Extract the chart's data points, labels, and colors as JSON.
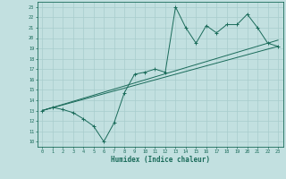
{
  "title": "",
  "xlabel": "Humidex (Indice chaleur)",
  "bg_color": "#c2e0e0",
  "line_color": "#1a6b5a",
  "grid_color": "#a8cccc",
  "xlim": [
    -0.5,
    23.5
  ],
  "ylim": [
    9.5,
    23.5
  ],
  "xtick_vals": [
    0,
    1,
    2,
    3,
    4,
    5,
    6,
    7,
    8,
    9,
    10,
    11,
    12,
    13,
    14,
    15,
    16,
    17,
    18,
    19,
    20,
    21,
    22,
    23
  ],
  "xtick_labels": [
    "0",
    "1",
    "2",
    "3",
    "4",
    "5",
    "6",
    "7",
    "8",
    "9",
    "10",
    "11",
    "12",
    "13",
    "14",
    "15",
    "16",
    "17",
    "18",
    "19",
    "20",
    "21",
    "22",
    "23"
  ],
  "ytick_vals": [
    10,
    11,
    12,
    13,
    14,
    15,
    16,
    17,
    18,
    19,
    20,
    21,
    22,
    23
  ],
  "ytick_labels": [
    "10",
    "11",
    "12",
    "13",
    "14",
    "15",
    "16",
    "17",
    "18",
    "19",
    "20",
    "21",
    "22",
    "23"
  ],
  "line_main_x": [
    0,
    1,
    2,
    3,
    4,
    5,
    6,
    7,
    8,
    9,
    10,
    11,
    12,
    13,
    14,
    15,
    16,
    17,
    18,
    19,
    20,
    21,
    22,
    23
  ],
  "line_main_y": [
    13.0,
    13.3,
    13.1,
    12.8,
    12.2,
    11.5,
    10.0,
    11.8,
    14.7,
    16.5,
    16.7,
    17.0,
    16.7,
    23.0,
    21.0,
    19.5,
    21.2,
    20.5,
    21.3,
    21.3,
    22.3,
    21.0,
    19.5,
    19.2
  ],
  "line_trend1_x": [
    0,
    23
  ],
  "line_trend1_y": [
    13.0,
    19.2
  ],
  "line_trend2_x": [
    0,
    23
  ],
  "line_trend2_y": [
    13.0,
    19.8
  ]
}
